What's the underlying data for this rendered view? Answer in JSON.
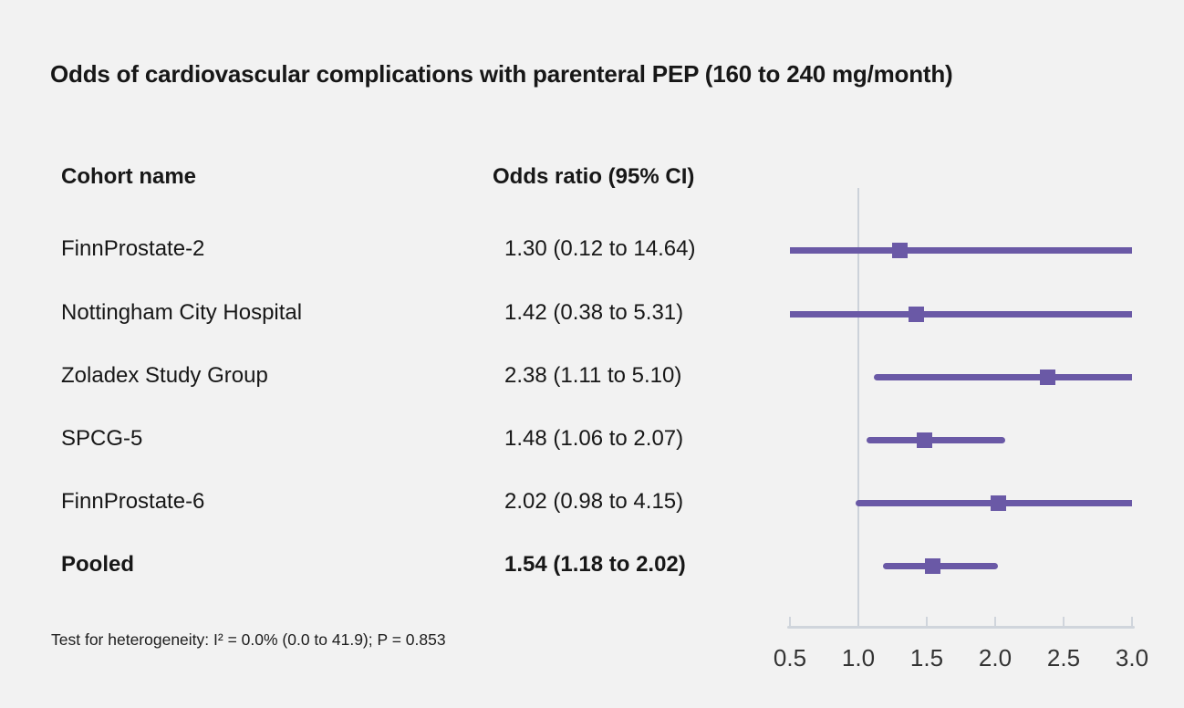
{
  "columns": {
    "cohort": "Cohort name",
    "odds": "Odds ratio (95% CI)"
  },
  "footnote": "Test for heterogeneity: I² = 0.0% (0.0 to 41.9); P = 0.853",
  "colors": {
    "accent_purple": "#6a59a6",
    "axis_gray": "#d0d5dc",
    "reference_line_gray": "#ccd2da",
    "background": "#f2f2f2",
    "text": "#171717"
  },
  "chart_data": {
    "type": "forest",
    "title": "Odds of cardiovascular complications with parenteral PEP (160 to 240 mg/month)",
    "xlabel": "",
    "ylabel": "",
    "xlim": [
      0.5,
      3.0
    ],
    "reference_line": 1.0,
    "axis_ticks": [
      0.5,
      1.0,
      1.5,
      2.0,
      2.5,
      3.0
    ],
    "axis_tick_labels": [
      "0.5",
      "1.0",
      "1.5",
      "2.0",
      "2.5",
      "3.0"
    ],
    "grid": false,
    "legend": false,
    "rows": [
      {
        "label": "FinnProstate-2",
        "or_text": "1.30 (0.12 to 14.64)",
        "or": 1.3,
        "ci_low": 0.12,
        "ci_high": 14.64,
        "bold": false
      },
      {
        "label": "Nottingham City Hospital",
        "or_text": "1.42 (0.38 to 5.31)",
        "or": 1.42,
        "ci_low": 0.38,
        "ci_high": 5.31,
        "bold": false
      },
      {
        "label": "Zoladex Study Group",
        "or_text": "2.38 (1.11 to 5.10)",
        "or": 2.38,
        "ci_low": 1.11,
        "ci_high": 5.1,
        "bold": false
      },
      {
        "label": "SPCG-5",
        "or_text": "1.48 (1.06 to 2.07)",
        "or": 1.48,
        "ci_low": 1.06,
        "ci_high": 2.07,
        "bold": false
      },
      {
        "label": "FinnProstate-6",
        "or_text": "2.02 (0.98 to 4.15)",
        "or": 2.02,
        "ci_low": 0.98,
        "ci_high": 4.15,
        "bold": false
      },
      {
        "label": "Pooled",
        "or_text": "1.54 (1.18 to 2.02)",
        "or": 1.54,
        "ci_low": 1.18,
        "ci_high": 2.02,
        "bold": true
      }
    ]
  }
}
